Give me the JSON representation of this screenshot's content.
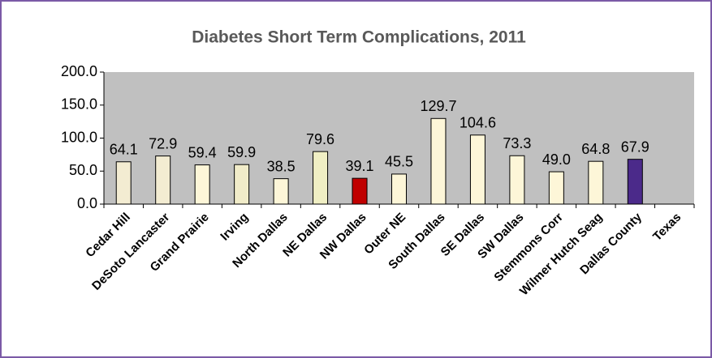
{
  "chart_data": {
    "type": "bar",
    "title": "Diabetes Short Term Complications, 2011",
    "categories": [
      "Cedar Hill",
      "DeSoto Lancaster",
      "Grand Prairie",
      "Irving",
      "North Dallas",
      "NE Dallas",
      "NW Dallas",
      "Outer NE",
      "South Dallas",
      "SE Dallas",
      "SW Dallas",
      "Stemmons Corr",
      "Wilmer Hutch Seag",
      "Dallas County",
      "Texas"
    ],
    "values": [
      64.1,
      72.9,
      59.4,
      59.9,
      38.5,
      79.6,
      39.1,
      45.5,
      129.7,
      104.6,
      73.3,
      49.0,
      64.8,
      67.9,
      null
    ],
    "value_labels": [
      "64.1",
      "72.9",
      "59.4",
      "59.9",
      "38.5",
      "79.6",
      "39.1",
      "45.5",
      "129.7",
      "104.6",
      "73.3",
      "49.0",
      "64.8",
      "67.9",
      null
    ],
    "colors": [
      "#f3ecd2",
      "#f3ecd2",
      "#fdf6d8",
      "#f1ecc9",
      "#fdf6d8",
      "#f0efc4",
      "#c00000",
      "#fdf6d8",
      "#fdf6d8",
      "#fdf6d8",
      "#fdf6d8",
      "#fdf6d8",
      "#fdf6d8",
      "#4b2a8a",
      "#fdf6d8"
    ],
    "ylim": [
      0,
      200
    ],
    "yticks": [
      {
        "value": 0,
        "label": "0.0"
      },
      {
        "value": 50,
        "label": "50.0"
      },
      {
        "value": 100,
        "label": "100.0"
      },
      {
        "value": 150,
        "label": "150.0"
      },
      {
        "value": 200,
        "label": "200.0"
      }
    ],
    "grid": false
  }
}
